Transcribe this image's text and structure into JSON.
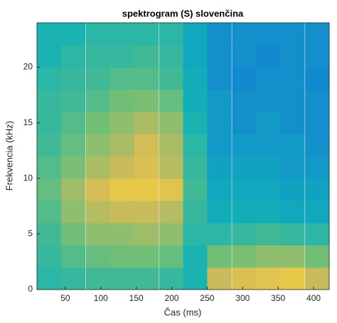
{
  "chart_data": {
    "type": "heatmap",
    "title": "spektrogram (S) slovenčina",
    "x_label": "Čas (ms)",
    "y_label": "Frekvencia (kHz)",
    "colormap": "parula",
    "clim": [
      0,
      1
    ],
    "x": [
      27,
      61,
      96,
      130,
      164,
      199,
      233,
      267,
      302,
      336,
      370,
      405
    ],
    "y": [
      1,
      3,
      5,
      7,
      9,
      11,
      13,
      15,
      17,
      19,
      21,
      23
    ],
    "z": [
      [
        0.38,
        0.4,
        0.42,
        0.42,
        0.42,
        0.4,
        0.35,
        0.65,
        0.7,
        0.72,
        0.75,
        0.65
      ],
      [
        0.4,
        0.45,
        0.48,
        0.5,
        0.5,
        0.48,
        0.35,
        0.5,
        0.52,
        0.55,
        0.55,
        0.5
      ],
      [
        0.42,
        0.5,
        0.55,
        0.55,
        0.58,
        0.55,
        0.38,
        0.38,
        0.4,
        0.42,
        0.4,
        0.38
      ],
      [
        0.45,
        0.55,
        0.62,
        0.65,
        0.65,
        0.62,
        0.4,
        0.32,
        0.32,
        0.32,
        0.3,
        0.3
      ],
      [
        0.48,
        0.58,
        0.68,
        0.75,
        0.75,
        0.72,
        0.42,
        0.3,
        0.3,
        0.3,
        0.28,
        0.28
      ],
      [
        0.45,
        0.52,
        0.6,
        0.65,
        0.7,
        0.62,
        0.4,
        0.28,
        0.28,
        0.28,
        0.25,
        0.25
      ],
      [
        0.42,
        0.48,
        0.55,
        0.6,
        0.68,
        0.6,
        0.38,
        0.25,
        0.25,
        0.25,
        0.25,
        0.22
      ],
      [
        0.4,
        0.45,
        0.5,
        0.55,
        0.6,
        0.55,
        0.35,
        0.25,
        0.22,
        0.25,
        0.22,
        0.22
      ],
      [
        0.4,
        0.42,
        0.45,
        0.5,
        0.52,
        0.48,
        0.32,
        0.25,
        0.22,
        0.22,
        0.22,
        0.22
      ],
      [
        0.38,
        0.4,
        0.42,
        0.45,
        0.45,
        0.42,
        0.32,
        0.22,
        0.2,
        0.22,
        0.22,
        0.2
      ],
      [
        0.35,
        0.38,
        0.4,
        0.4,
        0.42,
        0.4,
        0.3,
        0.22,
        0.22,
        0.2,
        0.22,
        0.22
      ],
      [
        0.35,
        0.35,
        0.38,
        0.38,
        0.38,
        0.38,
        0.3,
        0.22,
        0.22,
        0.22,
        0.22,
        0.22
      ]
    ],
    "xlim": [
      10,
      422
    ],
    "ylim": [
      0,
      24
    ],
    "xticks": [
      50,
      100,
      150,
      200,
      250,
      300,
      350,
      400
    ],
    "yticks": [
      0,
      5,
      10,
      15,
      20
    ]
  }
}
